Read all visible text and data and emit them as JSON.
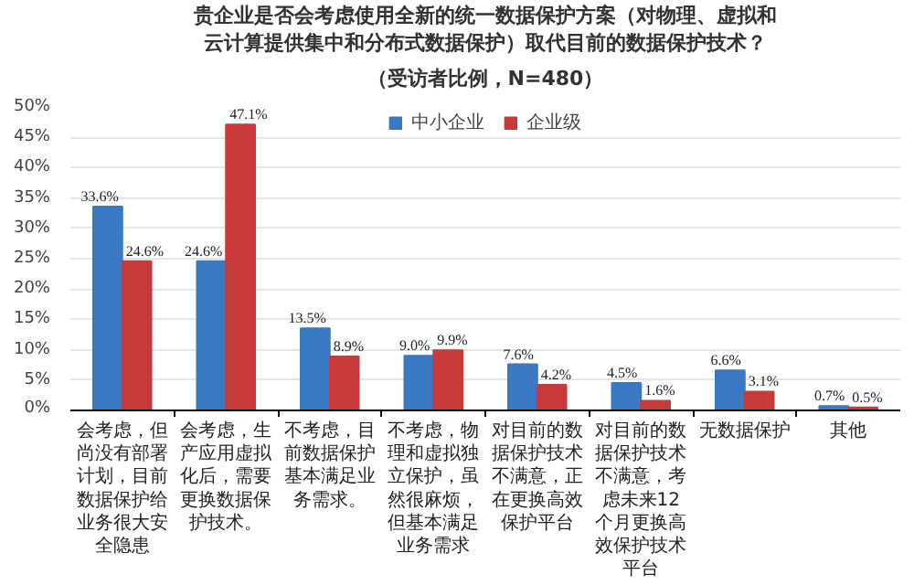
{
  "chart_data": {
    "type": "bar",
    "title": "贵企业是否会考虑使用全新的统一数据保护方案（对物理、虚拟和云计算提供集中和分布式数据保护）取代目前的数据保护技术？",
    "subtitle": "（受访者比例，N=480）",
    "categories": [
      "会考虑，但尚没有部署计划，目前数据保护给业务很大安全隐患",
      "会考虑，生产应用虚拟化后，需要更换数据保护技术。",
      "不考虑，目前数据保护基本满足业务需求。",
      "不考虑，物理和虚拟独立保护，虽然很麻烦，但基本满足业务需求",
      "对目前的数据保护技术不满意，正在更换高效保护平台",
      "对目前的数据保护技术不满意，考虑未来12个月更换高效保护技术平台",
      "无数据保护",
      "其他"
    ],
    "series": [
      {
        "name": "中小企业",
        "color": "#3a78c3",
        "values": [
          33.6,
          24.6,
          13.5,
          9.0,
          7.6,
          4.5,
          6.6,
          0.7
        ],
        "value_labels": [
          "33.6%",
          "24.6%",
          "13.5%",
          "9.0%",
          "7.6%",
          "4.5%",
          "6.6%",
          "0.7%"
        ]
      },
      {
        "name": "企业级",
        "color": "#c83a3a",
        "values": [
          24.6,
          47.1,
          8.9,
          9.9,
          4.2,
          1.6,
          3.1,
          0.5
        ],
        "value_labels": [
          "24.6%",
          "47.1%",
          "8.9%",
          "9.9%",
          "4.2%",
          "1.6%",
          "3.1%",
          "0.5%"
        ]
      }
    ],
    "ylim": [
      0,
      50
    ],
    "yticks": [
      {
        "value": 0,
        "label": "0%"
      },
      {
        "value": 5,
        "label": "5%"
      },
      {
        "value": 10,
        "label": "10%"
      },
      {
        "value": 15,
        "label": "15%"
      },
      {
        "value": 20,
        "label": "20%"
      },
      {
        "value": 25,
        "label": "25%"
      },
      {
        "value": 30,
        "label": "30%"
      },
      {
        "value": 35,
        "label": "35%"
      },
      {
        "value": 40,
        "label": "40%"
      },
      {
        "value": 45,
        "label": "45%"
      },
      {
        "value": 50,
        "label": "50%"
      }
    ],
    "grid": "y",
    "legend": "top"
  }
}
